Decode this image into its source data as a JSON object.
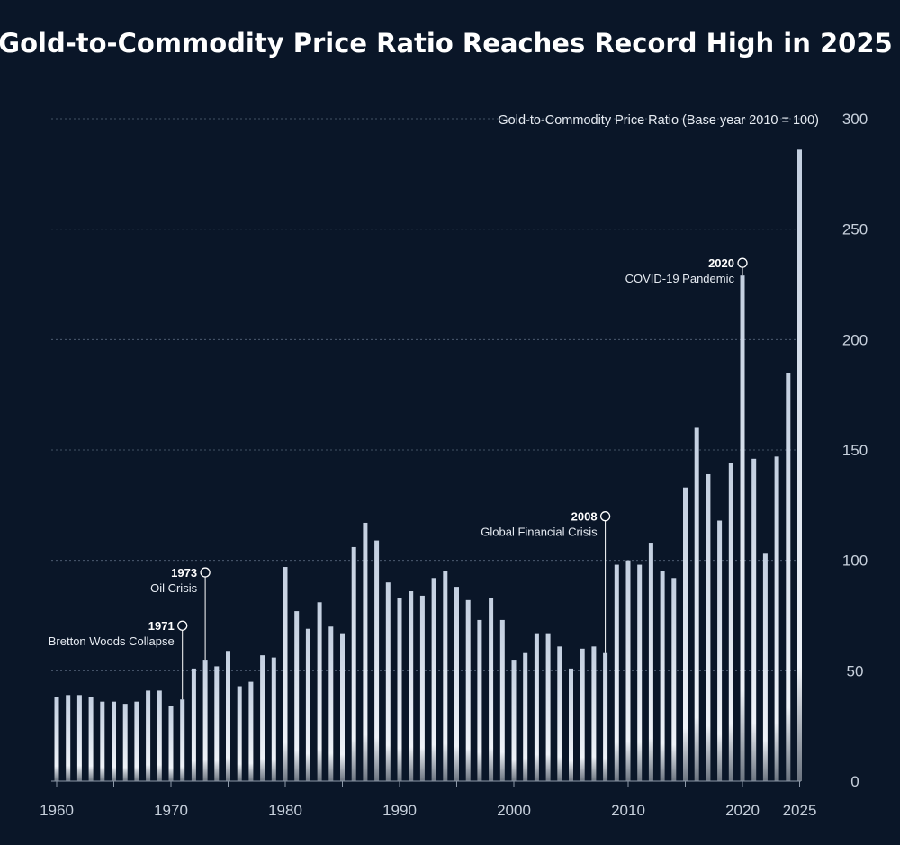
{
  "title": "Gold-to-Commodity Price Ratio Reaches Record High in 2025",
  "chart_data": {
    "type": "bar",
    "title": "Gold-to-Commodity Price Ratio Reaches Record High in 2025",
    "ylabel": "Gold-to-Commodity Price Ratio (Base year 2010 = 100)",
    "xlabel": "",
    "ylim": [
      0,
      300
    ],
    "yticks": [
      0,
      50,
      100,
      150,
      200,
      250,
      300
    ],
    "xticks": [
      1960,
      1970,
      1980,
      1990,
      2000,
      2010,
      2020,
      2025
    ],
    "grid": true,
    "series": [
      {
        "name": "Gold-to-Commodity Price Ratio",
        "x": [
          1960,
          1961,
          1962,
          1963,
          1964,
          1965,
          1966,
          1967,
          1968,
          1969,
          1970,
          1971,
          1972,
          1973,
          1974,
          1975,
          1976,
          1977,
          1978,
          1979,
          1980,
          1981,
          1982,
          1983,
          1984,
          1985,
          1986,
          1987,
          1988,
          1989,
          1990,
          1991,
          1992,
          1993,
          1994,
          1995,
          1996,
          1997,
          1998,
          1999,
          2000,
          2001,
          2002,
          2003,
          2004,
          2005,
          2006,
          2007,
          2008,
          2009,
          2010,
          2011,
          2012,
          2013,
          2014,
          2015,
          2016,
          2017,
          2018,
          2019,
          2020,
          2021,
          2022,
          2023,
          2024,
          2025
        ],
        "values": [
          38,
          39,
          39,
          38,
          36,
          36,
          35,
          36,
          41,
          41,
          34,
          37,
          51,
          55,
          52,
          59,
          43,
          45,
          57,
          56,
          97,
          77,
          69,
          81,
          70,
          67,
          106,
          117,
          109,
          90,
          83,
          86,
          84,
          92,
          95,
          88,
          82,
          73,
          83,
          73,
          55,
          58,
          67,
          67,
          61,
          51,
          60,
          61,
          58,
          98,
          100,
          98,
          108,
          95,
          92,
          133,
          160,
          139,
          118,
          144,
          229,
          146,
          103,
          147,
          185,
          286
        ]
      }
    ],
    "annotations": [
      {
        "year": "1971",
        "label": "Bretton Woods Collapse"
      },
      {
        "year": "1973",
        "label": "Oil Crisis"
      },
      {
        "year": "2008",
        "label": "Global Financial Crisis"
      },
      {
        "year": "2020",
        "label": "COVID-19 Pandemic"
      }
    ]
  }
}
